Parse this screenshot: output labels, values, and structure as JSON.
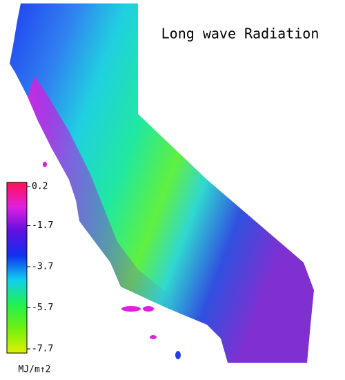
{
  "title": "Long wave Radiation",
  "colorbar": {
    "range": [
      -7.7,
      0.2
    ],
    "ticks": [
      0.2,
      -1.7,
      -3.7,
      -5.7,
      -7.7
    ],
    "unit": "MJ/m↑2",
    "colors": [
      "#ff1050",
      "#e020e0",
      "#6010e0",
      "#1030f0",
      "#10d0f0",
      "#20f050",
      "#70f010",
      "#e0f000"
    ]
  }
}
